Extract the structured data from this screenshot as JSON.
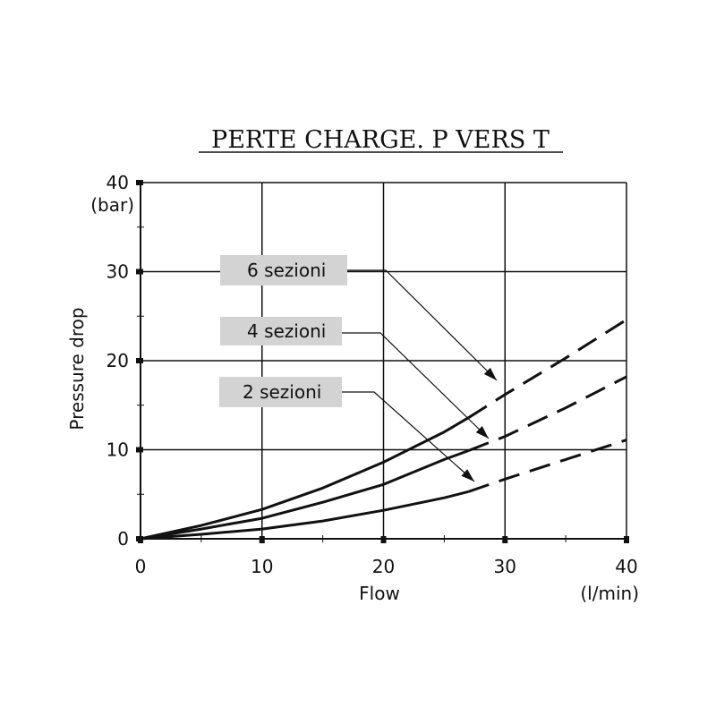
{
  "chart_data": {
    "type": "line",
    "title": "PERTE CHARGE. P VERS T",
    "xlabel": "Flow",
    "x_unit": "(l/min)",
    "ylabel": "Pressure drop",
    "y_unit": "(bar)",
    "xlim": [
      0,
      40
    ],
    "ylim": [
      0,
      40
    ],
    "x_ticks": [
      0,
      10,
      20,
      30,
      40
    ],
    "y_ticks": [
      0,
      10,
      20,
      30,
      40
    ],
    "grid": true,
    "series": [
      {
        "name": "6 sezioni",
        "solid": [
          [
            0,
            0
          ],
          [
            5,
            1.5
          ],
          [
            10,
            3.3
          ],
          [
            15,
            5.7
          ],
          [
            20,
            8.6
          ],
          [
            25,
            12.0
          ],
          [
            27,
            13.6
          ]
        ],
        "dashed": [
          [
            27,
            13.6
          ],
          [
            30,
            16.2
          ],
          [
            35,
            20.3
          ],
          [
            40,
            24.6
          ]
        ]
      },
      {
        "name": "4 sezioni",
        "solid": [
          [
            0,
            0
          ],
          [
            5,
            1.1
          ],
          [
            10,
            2.3
          ],
          [
            15,
            4.1
          ],
          [
            20,
            6.1
          ],
          [
            25,
            8.9
          ],
          [
            27,
            9.9
          ]
        ],
        "dashed": [
          [
            27,
            9.9
          ],
          [
            30,
            11.5
          ],
          [
            35,
            14.7
          ],
          [
            40,
            18.2
          ]
        ]
      },
      {
        "name": "2 sezioni",
        "solid": [
          [
            0,
            0
          ],
          [
            5,
            0.5
          ],
          [
            10,
            1.1
          ],
          [
            15,
            2.0
          ],
          [
            20,
            3.2
          ],
          [
            25,
            4.6
          ],
          [
            27,
            5.3
          ]
        ],
        "dashed": [
          [
            27,
            5.3
          ],
          [
            30,
            6.7
          ],
          [
            35,
            8.9
          ],
          [
            40,
            11.1
          ]
        ]
      }
    ],
    "legend_labels": [
      "6 sezioni",
      "4 sezioni",
      "2 sezioni"
    ],
    "legend_box_color": "#d3d3d3",
    "line_color": "#111111"
  }
}
